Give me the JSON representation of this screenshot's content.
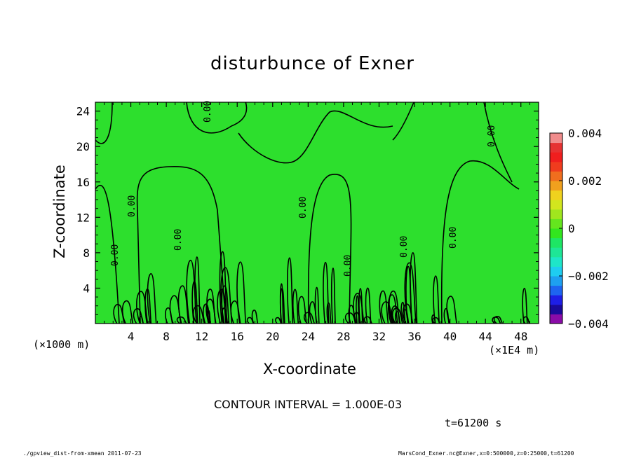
{
  "chart_data": {
    "type": "heatmap",
    "title": "disturbunce of Exner",
    "xlabel": "X-coordinate",
    "ylabel": "Z-coordinate",
    "x_unit_left": "(×1000 m)",
    "x_unit_right": "(×1E4 m)",
    "xlim": [
      0,
      50
    ],
    "ylim": [
      0,
      25
    ],
    "x_ticks": [
      "4",
      "8",
      "12",
      "16",
      "20",
      "24",
      "28",
      "32",
      "36",
      "40",
      "44",
      "48"
    ],
    "x_tick_values": [
      4,
      8,
      12,
      16,
      20,
      24,
      28,
      32,
      36,
      40,
      44,
      48
    ],
    "y_ticks": [
      "4",
      "8",
      "12",
      "16",
      "20",
      "24"
    ],
    "y_tick_values": [
      4,
      8,
      12,
      16,
      20,
      24
    ],
    "field_value_background": 0,
    "contour_label": "0.00",
    "contour_interval_text": "CONTOUR INTERVAL = 1.000E-03",
    "colorbar": {
      "min": -0.004,
      "max": 0.004,
      "tick_labels": [
        "0.004",
        "0.002",
        "0",
        "−0.002",
        "−0.004"
      ],
      "tick_values": [
        0.004,
        0.002,
        0,
        -0.002,
        -0.004
      ],
      "colors": [
        "#8a0ca8",
        "#1a0a9a",
        "#1e1ee6",
        "#1e64f0",
        "#1ea0f0",
        "#1ecdf0",
        "#1ee6c8",
        "#1ee696",
        "#1ee664",
        "#32e61e",
        "#64e61e",
        "#a0e61e",
        "#d2e61e",
        "#f0d21e",
        "#f0a01e",
        "#f06e1e",
        "#f03c1e",
        "#f01e1e",
        "#e63232",
        "#f08c8c"
      ]
    },
    "time_label": "t=61200 s",
    "footer_left": "./gpview_dist-from-xmean  2011-07-23",
    "footer_right": "MarsCond_Exner.nc@Exner,x=0:500000,z=0:25000,t=61200",
    "colors": {
      "field": "#2ddf2d",
      "contour": "#000000"
    }
  }
}
